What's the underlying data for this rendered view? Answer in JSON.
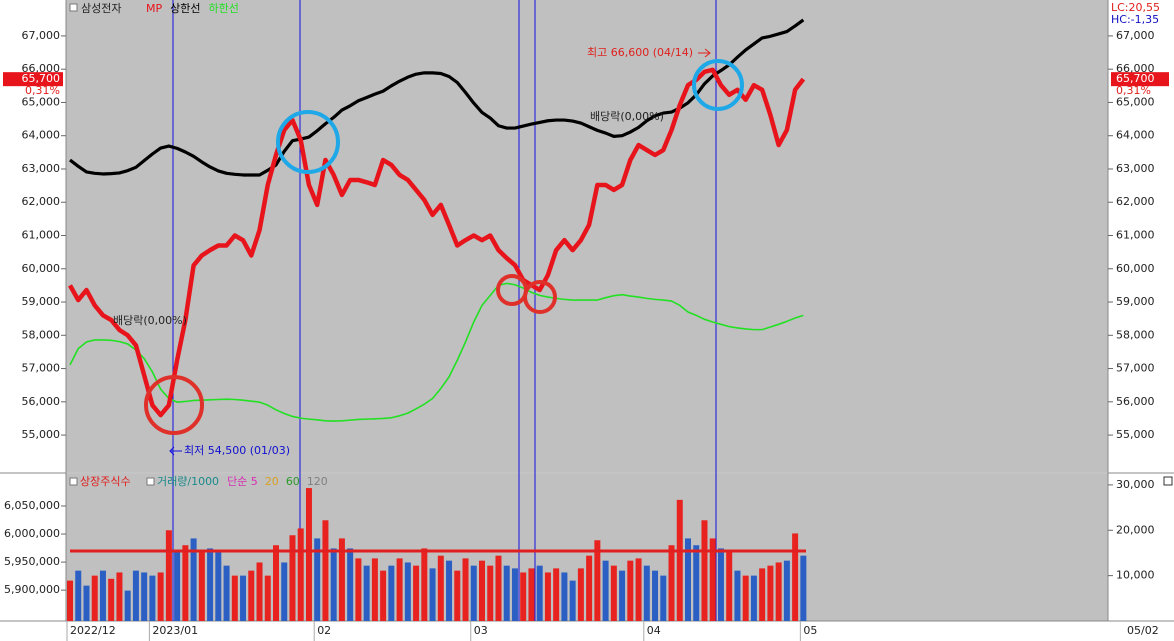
{
  "chart_data": [
    {
      "type": "line",
      "title": "삼성전자",
      "categories": [
        "2022/12",
        null,
        null,
        null,
        null,
        null,
        null,
        null,
        null,
        null,
        "2023/01",
        null,
        null,
        null,
        null,
        null,
        null,
        null,
        null,
        null,
        null,
        null,
        null,
        null,
        null,
        null,
        null,
        null,
        null,
        null,
        "02",
        null,
        null,
        null,
        null,
        null,
        null,
        null,
        null,
        null,
        null,
        null,
        null,
        null,
        null,
        null,
        null,
        null,
        null,
        "03",
        null,
        null,
        null,
        null,
        null,
        null,
        null,
        null,
        null,
        null,
        null,
        null,
        null,
        null,
        null,
        null,
        null,
        null,
        null,
        null,
        "04",
        null,
        null,
        null,
        null,
        null,
        null,
        null,
        null,
        null,
        null,
        null,
        null,
        null,
        null,
        null,
        null,
        null,
        null,
        "05"
      ],
      "series": [
        {
          "name": "MP",
          "color": "#e8141c",
          "values": [
            59500,
            59060,
            59360,
            58900,
            58600,
            58460,
            58160,
            58000,
            57700,
            56800,
            55900,
            55600,
            55900,
            57250,
            58460,
            60100,
            60400,
            60560,
            60700,
            60700,
            61000,
            60860,
            60400,
            61160,
            62520,
            63420,
            64170,
            64470,
            63870,
            62520,
            61920,
            63270,
            62820,
            62220,
            62670,
            62670,
            62600,
            62520,
            63270,
            63120,
            62820,
            62670,
            62370,
            62070,
            61620,
            61920,
            61320,
            60700,
            60860,
            61000,
            60860,
            61000,
            60560,
            60320,
            60110,
            59660,
            59510,
            59360,
            59810,
            60560,
            60860,
            60560,
            60860,
            61320,
            62520,
            62520,
            62370,
            62520,
            63270,
            63720,
            63570,
            63420,
            63570,
            64170,
            64920,
            65520,
            65680,
            65920,
            65980,
            65520,
            65230,
            65380,
            65080,
            65520,
            65380,
            64620,
            63720,
            64170,
            65380,
            65700
          ]
        },
        {
          "name": "상한선",
          "color": "#000000",
          "values": [
            63270,
            63080,
            62910,
            62870,
            62850,
            62860,
            62880,
            62950,
            63050,
            63250,
            63450,
            63630,
            63690,
            63620,
            63510,
            63380,
            63210,
            63060,
            62940,
            62870,
            62840,
            62820,
            62820,
            62820,
            62960,
            63120,
            63530,
            63850,
            63900,
            63960,
            64150,
            64360,
            64550,
            64770,
            64900,
            65050,
            65150,
            65250,
            65340,
            65500,
            65640,
            65760,
            65850,
            65890,
            65890,
            65870,
            65780,
            65600,
            65300,
            64980,
            64700,
            64530,
            64300,
            64230,
            64230,
            64290,
            64350,
            64400,
            64450,
            64470,
            64470,
            64440,
            64380,
            64270,
            64160,
            64080,
            63980,
            64000,
            64110,
            64250,
            64450,
            64600,
            64680,
            64710,
            64830,
            64990,
            65230,
            65560,
            65800,
            65960,
            66130,
            66360,
            66580,
            66760,
            66940,
            66990,
            67060,
            67130,
            67300,
            67480
          ]
        },
        {
          "name": "하한선",
          "color": "#22e022",
          "values": [
            57110,
            57600,
            57800,
            57860,
            57860,
            57850,
            57810,
            57740,
            57560,
            57300,
            56900,
            56380,
            56100,
            55990,
            56010,
            56040,
            56050,
            56060,
            56070,
            56080,
            56070,
            56050,
            56020,
            55990,
            55900,
            55760,
            55650,
            55560,
            55510,
            55480,
            55460,
            55430,
            55420,
            55430,
            55450,
            55470,
            55480,
            55490,
            55500,
            55520,
            55580,
            55660,
            55790,
            55930,
            56100,
            56400,
            56750,
            57250,
            57800,
            58400,
            58900,
            59200,
            59500,
            59560,
            59520,
            59420,
            59290,
            59200,
            59150,
            59110,
            59080,
            59060,
            59060,
            59060,
            59060,
            59130,
            59190,
            59220,
            59180,
            59150,
            59110,
            59080,
            59060,
            59030,
            58900,
            58700,
            58600,
            58480,
            58400,
            58330,
            58260,
            58220,
            58190,
            58170,
            58170,
            58250,
            58330,
            58420,
            58520,
            58600
          ]
        }
      ],
      "ylim": [
        53890,
        68080
      ],
      "yticks": [
        {
          "value": 55000,
          "label": "55,000"
        },
        {
          "value": 56000,
          "label": "56,000"
        },
        {
          "value": 57000,
          "label": "57,000"
        },
        {
          "value": 58000,
          "label": "58,000"
        },
        {
          "value": 59000,
          "label": "59,000"
        },
        {
          "value": 60000,
          "label": "60,000"
        },
        {
          "value": 61000,
          "label": "61,000"
        },
        {
          "value": 62000,
          "label": "62,000"
        },
        {
          "value": 63000,
          "label": "63,000"
        },
        {
          "value": 64000,
          "label": "64,000"
        },
        {
          "value": 65000,
          "label": "65,000"
        },
        {
          "value": 66000,
          "label": "66,000"
        },
        {
          "value": 67000,
          "label": "67,000"
        }
      ],
      "last_price": {
        "value": 65700,
        "label": "65,700"
      },
      "change": "0,31%",
      "lc": "LC:20,55",
      "hc": "HC:-1,35",
      "annotations": [
        "최고 66,600 (04/14)",
        "최저 54,500 (01/03)",
        "배당락(0,00%)",
        "배당락(0,00%)"
      ],
      "current_date": "05/02"
    },
    {
      "type": "bar",
      "reference_line": {
        "name": "상장주식수",
        "color": "#e02020",
        "value": 5969783
      },
      "series": [
        {
          "name": "거래량/1000",
          "axis": "y2",
          "color": "#1a8a8a",
          "values": [
            8900,
            11100,
            7800,
            10000,
            11100,
            9300,
            10700,
            6700,
            11100,
            10700,
            10000,
            10700,
            20000,
            15600,
            16700,
            18200,
            15100,
            16000,
            15600,
            12200,
            10000,
            10000,
            11100,
            12900,
            10000,
            16700,
            12900,
            18900,
            20400,
            29300,
            18200,
            22200,
            16000,
            18200,
            16000,
            13800,
            12200,
            13800,
            11100,
            12200,
            13800,
            12900,
            12200,
            16000,
            11600,
            14400,
            13300,
            11100,
            13800,
            12200,
            13300,
            12200,
            14400,
            12200,
            11600,
            10700,
            11600,
            12200,
            10700,
            11600,
            10700,
            8900,
            11600,
            14400,
            17800,
            13300,
            12200,
            11100,
            13300,
            13800,
            12200,
            11100,
            10000,
            16700,
            26700,
            18200,
            16700,
            22200,
            18200,
            16000,
            15600,
            11100,
            10000,
            10000,
            11600,
            12200,
            12900,
            13300,
            19300,
            14400
          ],
          "colors": [
            "#e8231f",
            "#2c5fc4",
            "#2c5fc4",
            "#e8231f",
            "#2c5fc4",
            "#e8231f",
            "#e8231f",
            "#2c5fc4",
            "#2c5fc4",
            "#2c5fc4",
            "#2c5fc4",
            "#e8231f",
            "#e8231f",
            "#2c5fc4",
            "#e8231f",
            "#2c5fc4",
            "#e8231f",
            "#2c5fc4",
            "#2c5fc4",
            "#2c5fc4",
            "#e8231f",
            "#2c5fc4",
            "#e8231f",
            "#e8231f",
            "#e8231f",
            "#e8231f",
            "#2c5fc4",
            "#e8231f",
            "#e8231f",
            "#e8231f",
            "#2c5fc4",
            "#e8231f",
            "#2c5fc4",
            "#e8231f",
            "#2c5fc4",
            "#e8231f",
            "#2c5fc4",
            "#e8231f",
            "#e8231f",
            "#2c5fc4",
            "#e8231f",
            "#2c5fc4",
            "#e8231f",
            "#e8231f",
            "#2c5fc4",
            "#e8231f",
            "#2c5fc4",
            "#e8231f",
            "#e8231f",
            "#2c5fc4",
            "#e8231f",
            "#e8231f",
            "#e8231f",
            "#2c5fc4",
            "#2c5fc4",
            "#e8231f",
            "#e8231f",
            "#2c5fc4",
            "#e8231f",
            "#e8231f",
            "#2c5fc4",
            "#2c5fc4",
            "#e8231f",
            "#e8231f",
            "#e8231f",
            "#2c5fc4",
            "#e8231f",
            "#2c5fc4",
            "#e8231f",
            "#e8231f",
            "#2c5fc4",
            "#2c5fc4",
            "#2c5fc4",
            "#e8231f",
            "#e8231f",
            "#2c5fc4",
            "#2c5fc4",
            "#e8231f",
            "#e8231f",
            "#2c5fc4",
            "#e8231f",
            "#2c5fc4",
            "#e8231f",
            "#2c5fc4",
            "#e8231f",
            "#e8231f",
            "#e8231f",
            "#2c5fc4",
            "#e8231f",
            "#2c5fc4"
          ]
        }
      ],
      "ma_legend": [
        {
          "name": "단순 5",
          "color": "#d62fb4"
        },
        {
          "name": "20",
          "color": "#d8a020"
        },
        {
          "name": "60",
          "color": "#2a9a2a"
        },
        {
          "name": "120",
          "color": "#808080"
        }
      ],
      "ylim": [
        5845000,
        6107000
      ],
      "yticks": [
        {
          "value": 5900000,
          "label": "5,900,000"
        },
        {
          "value": 5950000,
          "label": "5,950,000"
        },
        {
          "value": 6000000,
          "label": "6,000,000"
        },
        {
          "value": 6050000,
          "label": "6,050,000"
        }
      ],
      "y2lim": [
        0,
        32400
      ],
      "y2ticks": [
        {
          "value": 10000,
          "label": "10,000"
        },
        {
          "value": 20000,
          "label": "20,000"
        },
        {
          "value": 30000,
          "label": "30,000"
        }
      ]
    }
  ]
}
